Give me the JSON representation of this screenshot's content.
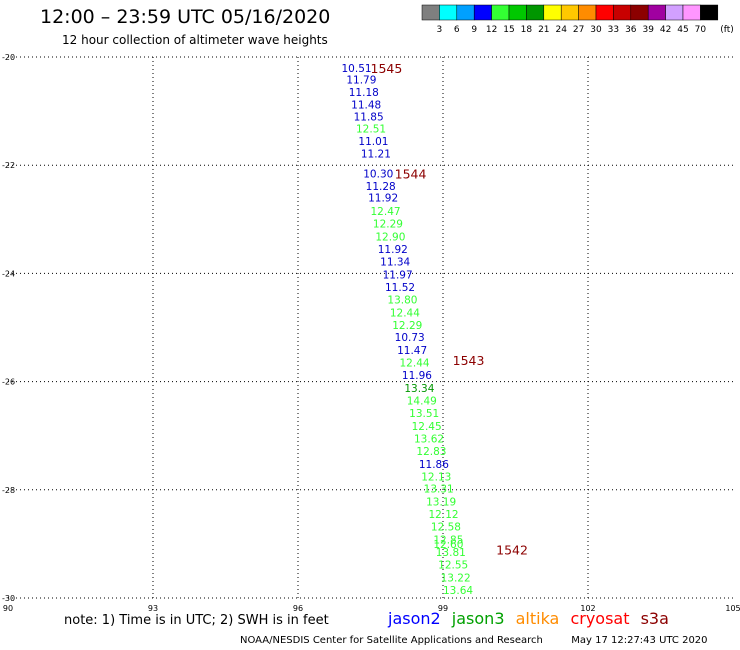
{
  "title": "12:00 – 23:59 UTC 05/16/2020",
  "subtitle": "12 hour collection of altimeter wave heights",
  "legend": {
    "unit": "(ft)",
    "colors": [
      "#7f7f7f",
      "#00ffff",
      "#00a0ff",
      "#0000ff",
      "#33ff33",
      "#00c800",
      "#009600",
      "#ffff00",
      "#ffc800",
      "#ff8c00",
      "#ff0000",
      "#c80000",
      "#8c0000",
      "#a000a0",
      "#d2a0ff",
      "#ff96ff",
      "#000000"
    ],
    "labels": [
      "3",
      "6",
      "9",
      "12",
      "15",
      "18",
      "21",
      "24",
      "27",
      "30",
      "33",
      "36",
      "39",
      "42",
      "45",
      "70"
    ]
  },
  "chart_data": {
    "type": "scatter",
    "xlim": [
      90,
      105
    ],
    "ylim": [
      -30,
      -20
    ],
    "x_ticks": [
      "90",
      "93",
      "96",
      "99",
      "102",
      "105"
    ],
    "y_ticks": [
      "-20",
      "-22",
      "-24",
      "-26",
      "-28",
      "-30"
    ],
    "grid": true,
    "orbits": [
      {
        "label": "1545",
        "lon": 97.5,
        "lat": -20.2,
        "color": "#8c0000"
      },
      {
        "label": "1544",
        "lon": 98.0,
        "lat": -22.15,
        "color": "#8c0000"
      },
      {
        "label": "1543",
        "lon": 99.2,
        "lat": -25.6,
        "color": "#8c0000"
      },
      {
        "label": "1542",
        "lon": 100.1,
        "lat": -29.1,
        "color": "#8c0000"
      }
    ],
    "points": [
      {
        "v": "10.51",
        "lon": 96.9,
        "lat": -20.2,
        "color": "#0000c8"
      },
      {
        "v": "11.79",
        "lon": 97.0,
        "lat": -20.42,
        "color": "#0000c8"
      },
      {
        "v": "11.18",
        "lon": 97.05,
        "lat": -20.65,
        "color": "#0000c8"
      },
      {
        "v": "11.48",
        "lon": 97.1,
        "lat": -20.88,
        "color": "#0000c8"
      },
      {
        "v": "11.85",
        "lon": 97.15,
        "lat": -21.1,
        "color": "#0000c8"
      },
      {
        "v": "12.51",
        "lon": 97.2,
        "lat": -21.32,
        "color": "#33ff33"
      },
      {
        "v": "11.01",
        "lon": 97.25,
        "lat": -21.55,
        "color": "#0000c8"
      },
      {
        "v": "11.21",
        "lon": 97.3,
        "lat": -21.78,
        "color": "#0000c8"
      },
      {
        "v": "10.30",
        "lon": 97.35,
        "lat": -22.15,
        "color": "#0000c8"
      },
      {
        "v": "11.28",
        "lon": 97.4,
        "lat": -22.38,
        "color": "#0000c8"
      },
      {
        "v": "11.92",
        "lon": 97.45,
        "lat": -22.6,
        "color": "#0000c8"
      },
      {
        "v": "12.47",
        "lon": 97.5,
        "lat": -22.85,
        "color": "#33ff33"
      },
      {
        "v": "12.29",
        "lon": 97.55,
        "lat": -23.08,
        "color": "#33ff33"
      },
      {
        "v": "12.90",
        "lon": 97.6,
        "lat": -23.32,
        "color": "#33ff33"
      },
      {
        "v": "11.92",
        "lon": 97.65,
        "lat": -23.55,
        "color": "#0000c8"
      },
      {
        "v": "11.34",
        "lon": 97.7,
        "lat": -23.78,
        "color": "#0000c8"
      },
      {
        "v": "11.97",
        "lon": 97.75,
        "lat": -24.02,
        "color": "#0000c8"
      },
      {
        "v": "11.52",
        "lon": 97.8,
        "lat": -24.25,
        "color": "#0000c8"
      },
      {
        "v": "13.80",
        "lon": 97.85,
        "lat": -24.48,
        "color": "#33ff33"
      },
      {
        "v": "12.44",
        "lon": 97.9,
        "lat": -24.72,
        "color": "#33ff33"
      },
      {
        "v": "12.29",
        "lon": 97.95,
        "lat": -24.95,
        "color": "#33ff33"
      },
      {
        "v": "10.73",
        "lon": 98.0,
        "lat": -25.18,
        "color": "#0000c8"
      },
      {
        "v": "11.47",
        "lon": 98.05,
        "lat": -25.42,
        "color": "#0000c8"
      },
      {
        "v": "12.44",
        "lon": 98.1,
        "lat": -25.65,
        "color": "#33ff33"
      },
      {
        "v": "11.96",
        "lon": 98.15,
        "lat": -25.88,
        "color": "#0000c8"
      },
      {
        "v": "13.34",
        "lon": 98.2,
        "lat": -26.12,
        "color": "#009600"
      },
      {
        "v": "14.49",
        "lon": 98.25,
        "lat": -26.35,
        "color": "#33ff33"
      },
      {
        "v": "13.51",
        "lon": 98.3,
        "lat": -26.58,
        "color": "#33ff33"
      },
      {
        "v": "12.45",
        "lon": 98.35,
        "lat": -26.82,
        "color": "#33ff33"
      },
      {
        "v": "13.62",
        "lon": 98.4,
        "lat": -27.05,
        "color": "#33ff33"
      },
      {
        "v": "12.83",
        "lon": 98.45,
        "lat": -27.28,
        "color": "#33ff33"
      },
      {
        "v": "11.86",
        "lon": 98.5,
        "lat": -27.52,
        "color": "#0000c8"
      },
      {
        "v": "12.13",
        "lon": 98.55,
        "lat": -27.75,
        "color": "#33ff33"
      },
      {
        "v": "13.31",
        "lon": 98.6,
        "lat": -27.98,
        "color": "#33ff33"
      },
      {
        "v": "13.19",
        "lon": 98.65,
        "lat": -28.22,
        "color": "#33ff33"
      },
      {
        "v": "12.12",
        "lon": 98.7,
        "lat": -28.45,
        "color": "#33ff33"
      },
      {
        "v": "12.58",
        "lon": 98.75,
        "lat": -28.68,
        "color": "#33ff33"
      },
      {
        "v": "12.85",
        "lon": 98.8,
        "lat": -28.92,
        "color": "#33ff33"
      },
      {
        "v": "12.60",
        "lon": 98.8,
        "lat": -29.0,
        "color": "#33ff33"
      },
      {
        "v": "13.81",
        "lon": 98.85,
        "lat": -29.15,
        "color": "#33ff33"
      },
      {
        "v": "12.55",
        "lon": 98.9,
        "lat": -29.38,
        "color": "#33ff33"
      },
      {
        "v": "13.22",
        "lon": 98.95,
        "lat": -29.62,
        "color": "#33ff33"
      },
      {
        "v": "13.64",
        "lon": 99.0,
        "lat": -29.85,
        "color": "#33ff33"
      }
    ]
  },
  "note": "note: 1) Time is in UTC; 2) SWH is in feet",
  "satellites": [
    {
      "name": "jason2",
      "color": "#0000ff"
    },
    {
      "name": "jason3",
      "color": "#00a000"
    },
    {
      "name": "altika",
      "color": "#ff8c00"
    },
    {
      "name": "cryosat",
      "color": "#ff0000"
    },
    {
      "name": "s3a",
      "color": "#8c0000"
    }
  ],
  "credit_left": "NOAA/NESDIS Center for Satellite Applications and Research",
  "credit_right": "May 17 12:27:43 UTC 2020"
}
